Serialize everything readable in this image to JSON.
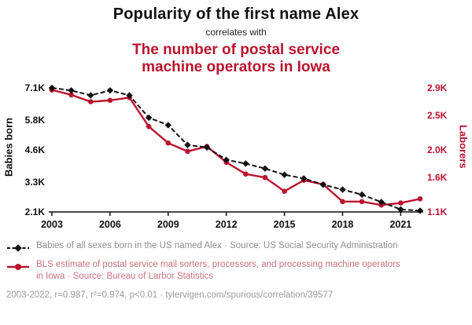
{
  "header": {
    "title": "Popularity of the first name Alex",
    "connector": "correlates with",
    "subtitle": "The number of postal service machine operators in Iowa"
  },
  "colors": {
    "accent_red": "#bb132f",
    "series_black": "#111111",
    "legend_gray": "#8e8e8e",
    "legend_red": "#c9707e",
    "footer_gray": "#9a9a9a"
  },
  "chart_data": {
    "type": "line",
    "title": "Popularity of the first name Alex correlates with the number of postal service machine operators in Iowa",
    "x": [
      2003,
      2004,
      2005,
      2006,
      2007,
      2008,
      2009,
      2010,
      2011,
      2012,
      2013,
      2014,
      2015,
      2016,
      2017,
      2018,
      2019,
      2020,
      2021,
      2022
    ],
    "x_ticks": [
      2003,
      2006,
      2009,
      2012,
      2015,
      2018,
      2021
    ],
    "grid": false,
    "legend_position": "bottom",
    "left_axis": {
      "label": "Babies born",
      "ticks": [
        "7.1K",
        "5.8K",
        "4.6K",
        "3.3K",
        "2.1K"
      ],
      "tick_values": [
        7100,
        5800,
        4600,
        3300,
        2100
      ],
      "range": [
        2100,
        7100
      ]
    },
    "right_axis": {
      "label": "Laborers",
      "ticks": [
        "2.9K",
        "2.5K",
        "2.0K",
        "1.6K",
        "1.1K"
      ],
      "tick_values": [
        2900,
        2500,
        2000,
        1600,
        1100
      ],
      "range": [
        1100,
        2900
      ]
    },
    "series": [
      {
        "name": "Babies of all sexes born in the US named Alex",
        "axis": "left",
        "color": "#111111",
        "style": "dashed-diamond",
        "values": [
          7100,
          7000,
          6800,
          7000,
          6800,
          5900,
          5600,
          4800,
          4700,
          4200,
          4050,
          3850,
          3600,
          3450,
          3200,
          3000,
          2800,
          2500,
          2200,
          2150
        ]
      },
      {
        "name": "BLS estimate of postal service machine operators in Iowa",
        "axis": "right",
        "color": "#bb132f",
        "style": "solid-circle",
        "values": [
          2870,
          2800,
          2700,
          2720,
          2760,
          2340,
          2100,
          1980,
          2050,
          1820,
          1650,
          1600,
          1400,
          1560,
          1500,
          1250,
          1250,
          1200,
          1230,
          1290
        ]
      }
    ]
  },
  "legend": {
    "series1": "Babies of all sexes born in the US named Alex · Source: US Social Security Administration",
    "series2": "BLS estimate of postal service mail sorters, processors, and processing machine operators in Iowa · Source: Bureau of Larbor Statistics"
  },
  "footer": {
    "text": "2003-2022, r=0.987, r²=0.974, p<0.01 · tylervigen.com/spurious/correlation/39577"
  }
}
